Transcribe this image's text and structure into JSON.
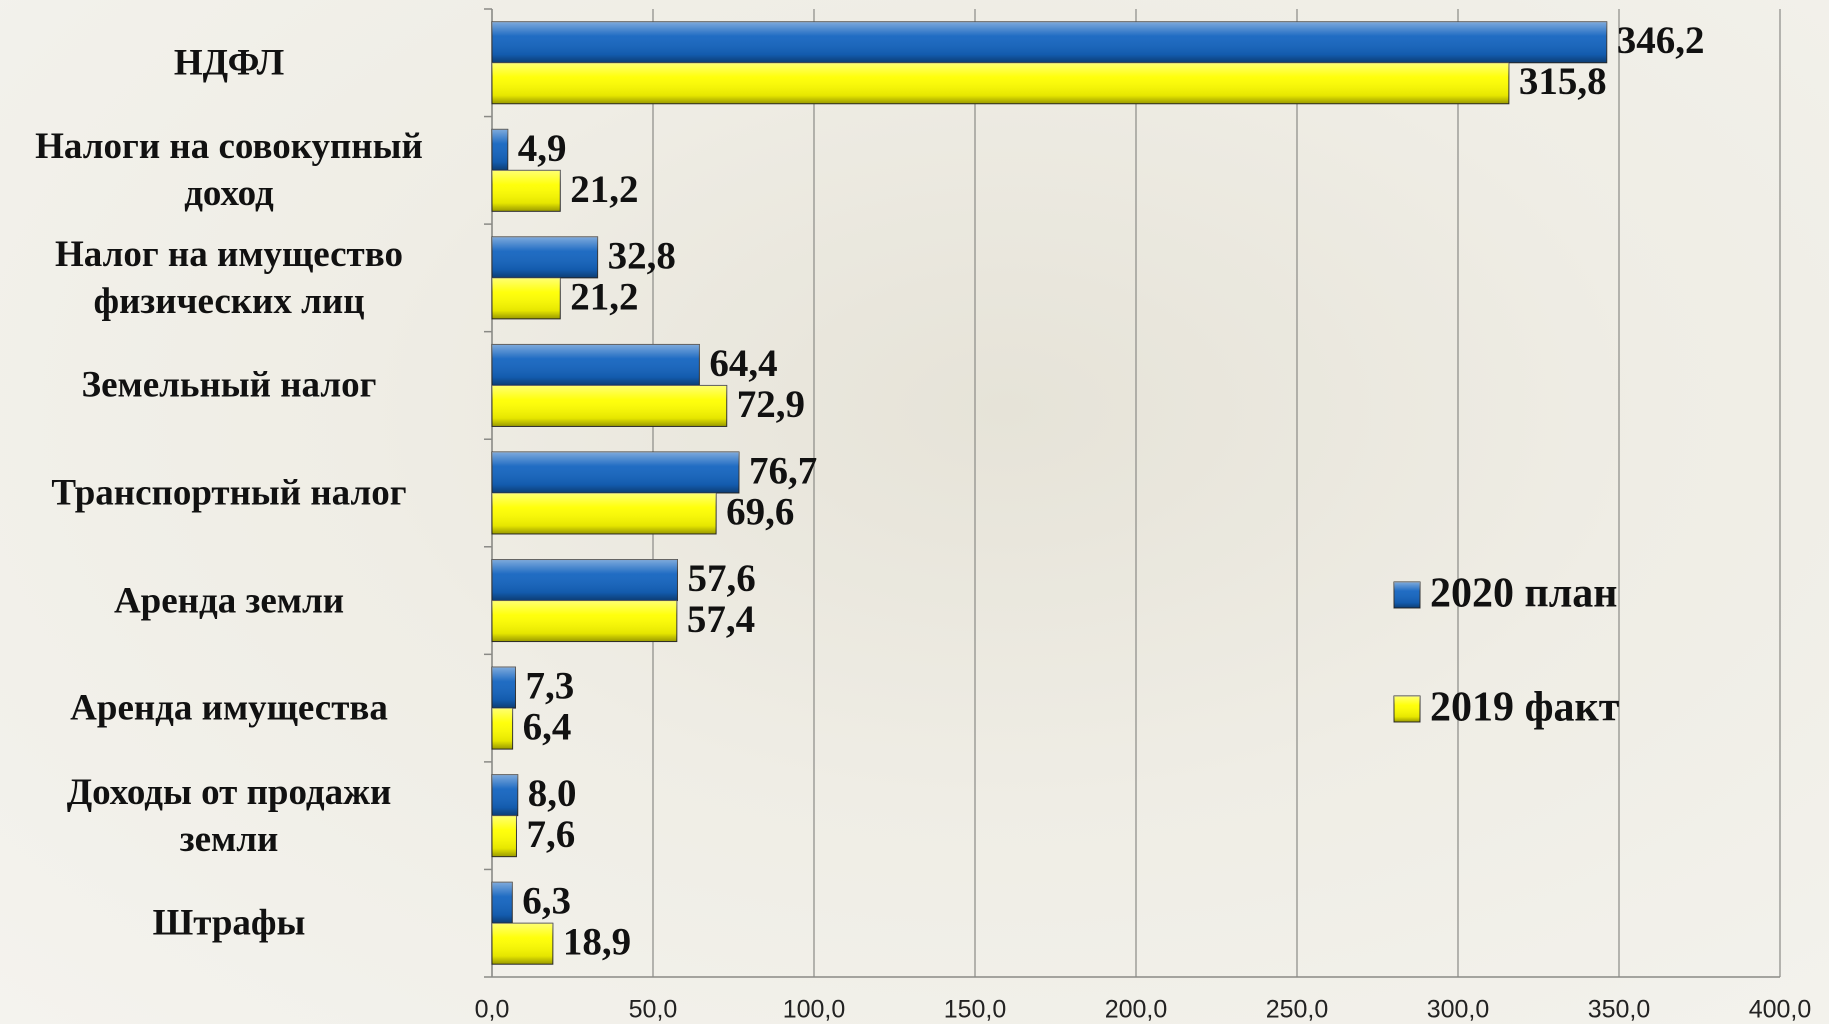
{
  "chart_data": {
    "type": "hbar",
    "categories": [
      "НДФЛ",
      "Налоги на совокупный\nдоход",
      "Налог на имущество\nфизических лиц",
      "Земельный налог",
      "Транспортный налог",
      "Аренда земли",
      "Аренда имущества",
      "Доходы от продажи\nземли",
      "Штрафы"
    ],
    "series": [
      {
        "name": "2020 план",
        "color": "#1565c0",
        "values": [
          346.2,
          4.9,
          32.8,
          64.4,
          76.7,
          57.6,
          7.3,
          8.0,
          6.3
        ],
        "value_labels": [
          "346,2",
          "4,9",
          "32,8",
          "64,4",
          "76,7",
          "57,6",
          "7,3",
          "8,0",
          "6,3"
        ]
      },
      {
        "name": "2019 факт",
        "color": "#ffff00",
        "values": [
          315.8,
          21.2,
          21.2,
          72.9,
          69.6,
          57.4,
          6.4,
          7.6,
          18.9
        ],
        "value_labels": [
          "315,8",
          "21,2",
          "21,2",
          "72,9",
          "69,6",
          "57,4",
          "6,4",
          "7,6",
          "18,9"
        ]
      }
    ],
    "xlim": [
      0,
      400
    ],
    "xticks": [
      {
        "value": 0,
        "label": "0,0"
      },
      {
        "value": 50,
        "label": "50,0"
      },
      {
        "value": 100,
        "label": "100,0"
      },
      {
        "value": 150,
        "label": "150,0"
      },
      {
        "value": 200,
        "label": "200,0"
      },
      {
        "value": 250,
        "label": "250,0"
      },
      {
        "value": 300,
        "label": "300,0"
      },
      {
        "value": 350,
        "label": "350,0"
      },
      {
        "value": 400,
        "label": "400,0"
      }
    ],
    "grid": true
  }
}
